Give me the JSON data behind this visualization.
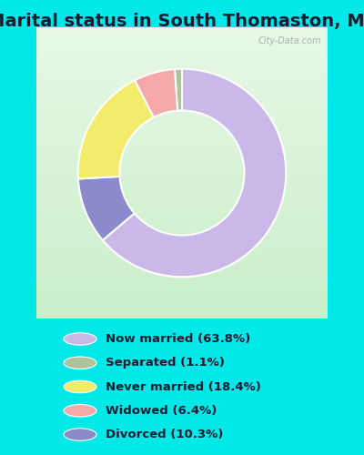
{
  "title": "Marital status in South Thomaston, ME",
  "categories": [
    "Now married",
    "Divorced",
    "Never married",
    "Widowed",
    "Separated"
  ],
  "values": [
    63.8,
    10.3,
    18.4,
    6.4,
    1.1
  ],
  "colors": [
    "#c9b8e8",
    "#8b8bcc",
    "#f2ec6a",
    "#f4a8a8",
    "#adc49a"
  ],
  "legend_labels": [
    "Now married (63.8%)",
    "Separated (1.1%)",
    "Never married (18.4%)",
    "Widowed (6.4%)",
    "Divorced (10.3%)"
  ],
  "legend_colors": [
    "#c9b8e8",
    "#adc49a",
    "#f2ec6a",
    "#f4a8a8",
    "#8b8bcc"
  ],
  "bg_color": "#00e8e8",
  "chart_bg_top": "#e8f5e8",
  "chart_bg_bottom": "#d0f0d8",
  "title_fontsize": 14,
  "watermark": "City-Data.com",
  "startangle": 90
}
